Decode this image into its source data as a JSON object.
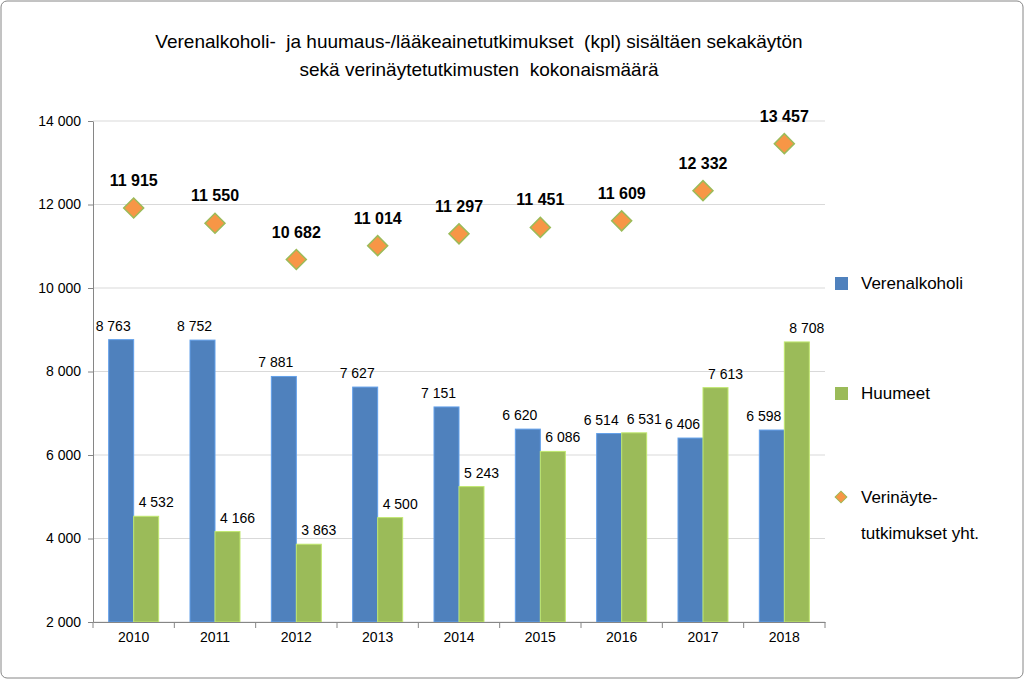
{
  "chart_data": {
    "type": "bar",
    "title": [
      "Verenalkoholi-  ja huumaus-/lääkeainetutkimukset  (kpl) sisältäen sekakäytön",
      "sekä verinäytetutkimusten  kokonaismäärä"
    ],
    "categories": [
      "2010",
      "2011",
      "2012",
      "2013",
      "2014",
      "2015",
      "2016",
      "2017",
      "2018"
    ],
    "series": [
      {
        "name": "Verenalkoholi",
        "color": "#4f81bd",
        "type": "bar",
        "values": [
          8763,
          8752,
          7881,
          7627,
          7151,
          6620,
          6514,
          6406,
          6598
        ],
        "value_labels": [
          "8 763",
          "8 752",
          "7 881",
          "7 627",
          "7 151",
          "6 620",
          "6 514",
          "6 406",
          "6 598"
        ]
      },
      {
        "name": "Huumeet",
        "color": "#9bbb59",
        "type": "bar",
        "values": [
          4532,
          4166,
          3863,
          4500,
          5243,
          6086,
          6531,
          7613,
          8708
        ],
        "value_labels": [
          "4 532",
          "4 166",
          "3 863",
          "4 500",
          "5 243",
          "6 086",
          "6 531",
          "7 613",
          "8 708"
        ]
      },
      {
        "name": "Verinäyte-tutkimukset yht.",
        "color": "#f79646",
        "type": "scatter",
        "marker": "diamond",
        "values": [
          11915,
          11550,
          10682,
          11014,
          11297,
          11451,
          11609,
          12332,
          13457
        ],
        "value_labels": [
          "11 915",
          "11 550",
          "10 682",
          "11 014",
          "11 297",
          "11 451",
          "11 609",
          "12 332",
          "13 457"
        ]
      }
    ],
    "ylim": [
      2000,
      14000
    ],
    "yticks": [
      {
        "value": 2000,
        "label": "2 000"
      },
      {
        "value": 4000,
        "label": "4 000"
      },
      {
        "value": 6000,
        "label": "6 000"
      },
      {
        "value": 8000,
        "label": "8 000"
      },
      {
        "value": 10000,
        "label": "10 000"
      },
      {
        "value": 12000,
        "label": "12 000"
      },
      {
        "value": 14000,
        "label": "14 000"
      }
    ],
    "grid": true,
    "legend": "right",
    "data_labels": true
  }
}
